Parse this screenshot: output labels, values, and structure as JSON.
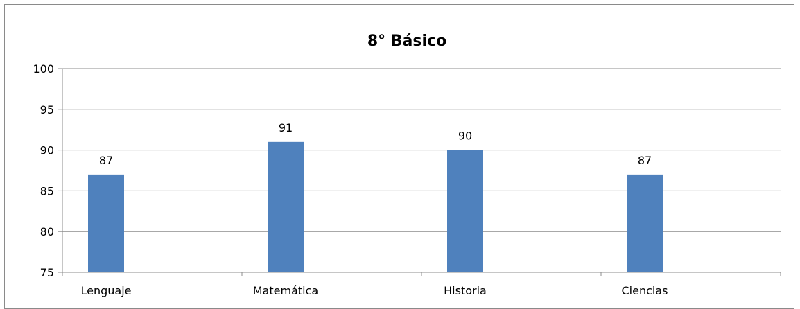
{
  "chart_data": {
    "type": "bar",
    "title": "8° Básico",
    "xlabel": "",
    "ylabel": "",
    "categories": [
      "Lenguaje",
      "Matemática",
      "Historia",
      "Ciencias"
    ],
    "values": [
      87,
      91,
      90,
      87
    ],
    "data_labels": [
      "87",
      "91",
      "90",
      "87"
    ],
    "ylim": [
      75,
      100
    ],
    "yticks": [
      "75",
      "80",
      "85",
      "90",
      "95",
      "100"
    ],
    "grid": true,
    "legend": "none",
    "bar_color": "#4f81bd"
  }
}
